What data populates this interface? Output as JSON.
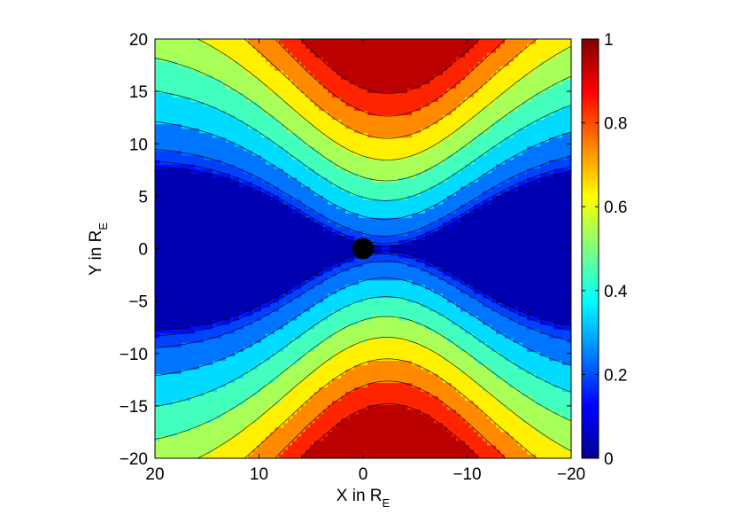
{
  "chart_data": {
    "type": "heatmap",
    "title": "",
    "xlabel": {
      "text": "X in R",
      "subscript": "E"
    },
    "ylabel": {
      "text": "Y in R",
      "subscript": "E"
    },
    "xlim": [
      20,
      -20
    ],
    "ylim": [
      -20,
      20
    ],
    "x_reversed": true,
    "xticks": [
      {
        "value": 20,
        "label": "20"
      },
      {
        "value": 10,
        "label": "10"
      },
      {
        "value": 0,
        "label": "0"
      },
      {
        "value": -10,
        "label": "−10"
      },
      {
        "value": -20,
        "label": "−20"
      }
    ],
    "yticks": [
      {
        "value": 20,
        "label": "20"
      },
      {
        "value": 15,
        "label": "15"
      },
      {
        "value": 10,
        "label": "10"
      },
      {
        "value": 5,
        "label": "5"
      },
      {
        "value": 0,
        "label": "0"
      },
      {
        "value": -5,
        "label": "−5"
      },
      {
        "value": -10,
        "label": "−10"
      },
      {
        "value": -15,
        "label": "−15"
      },
      {
        "value": -20,
        "label": "−20"
      }
    ],
    "colorbar": {
      "range": [
        0,
        1
      ],
      "ticks": [
        {
          "value": 0,
          "label": "0"
        },
        {
          "value": 0.2,
          "label": "0.2"
        },
        {
          "value": 0.4,
          "label": "0.4"
        },
        {
          "value": 0.6,
          "label": "0.6"
        },
        {
          "value": 0.8,
          "label": "0.8"
        },
        {
          "value": 1,
          "label": "1"
        }
      ],
      "colormap": "jet"
    },
    "contour_levels": [
      0.1,
      0.15,
      0.2,
      0.3,
      0.4,
      0.5,
      0.6,
      0.7,
      0.8,
      0.9
    ],
    "field_description_values": {
      "center_band_value": 0.05,
      "lobe_peak_value": 0.9
    },
    "marker": {
      "shape": "circle",
      "x": 0,
      "y": 0,
      "color": "#000000"
    },
    "grid": false,
    "legend": "none"
  }
}
